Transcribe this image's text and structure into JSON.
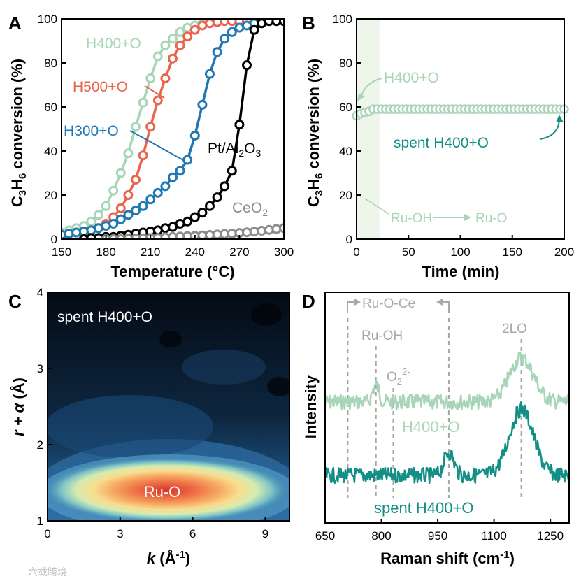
{
  "colors": {
    "h400": "#a8d5b8",
    "h500": "#e9654d",
    "h300": "#1f77b4",
    "pt": "#000000",
    "ceo2": "#8c8c8c",
    "spent": "#138f86",
    "dash": "#a8a8a8"
  },
  "chart_data": [
    {
      "panel": "A",
      "type": "line",
      "xlabel": "Temperature (°C)",
      "ylabel_parts": [
        "C",
        "3",
        "H",
        "6",
        " conversion (%)"
      ],
      "xlim": [
        150,
        300
      ],
      "ylim": [
        0,
        100
      ],
      "xticks": [
        150,
        180,
        210,
        240,
        270,
        300
      ],
      "yticks": [
        0,
        20,
        40,
        60,
        80,
        100
      ],
      "series": [
        {
          "name": "H400+O",
          "color_key": "h400",
          "x": [
            150,
            155,
            160,
            165,
            170,
            175,
            180,
            185,
            190,
            195,
            200,
            205,
            210,
            215,
            220,
            225,
            230,
            235,
            240,
            245,
            250,
            255,
            260,
            265,
            270,
            275,
            280,
            285,
            290,
            295,
            300
          ],
          "y": [
            3,
            4,
            5,
            6,
            8,
            11,
            15,
            22,
            30,
            39,
            51,
            62,
            73,
            83,
            88,
            91,
            94,
            96,
            97,
            98,
            98.5,
            99,
            99,
            99,
            99,
            99,
            99,
            99,
            99,
            99,
            99
          ]
        },
        {
          "name": "H500+O",
          "color_key": "h500",
          "x": [
            150,
            155,
            160,
            165,
            170,
            175,
            180,
            185,
            190,
            195,
            200,
            205,
            210,
            215,
            220,
            225,
            230,
            235,
            240,
            245,
            250,
            255,
            260,
            265,
            270,
            275,
            280,
            285,
            290,
            295,
            300
          ],
          "y": [
            2,
            2.5,
            3,
            3.5,
            4,
            5,
            7,
            10,
            14,
            20,
            27,
            38,
            51,
            63,
            73,
            82,
            88,
            92,
            95,
            97,
            98,
            98.5,
            99,
            99,
            99,
            99,
            99,
            99,
            99,
            99,
            99
          ]
        },
        {
          "name": "H300+O",
          "color_key": "h300",
          "x": [
            150,
            155,
            160,
            165,
            170,
            175,
            180,
            185,
            190,
            195,
            200,
            205,
            210,
            215,
            220,
            225,
            230,
            235,
            240,
            245,
            250,
            255,
            260,
            265,
            270,
            275,
            280,
            285,
            290,
            295,
            300
          ],
          "y": [
            2,
            2.5,
            3,
            3.5,
            4,
            5,
            6,
            7,
            9,
            11,
            13,
            15,
            18,
            21,
            24,
            28,
            31,
            36,
            47,
            61,
            75,
            85,
            91,
            94,
            96,
            97,
            98,
            98.5,
            99,
            99,
            99
          ]
        },
        {
          "name": "Pt/Al2O3",
          "color_key": "pt",
          "x": [
            165,
            170,
            175,
            180,
            185,
            190,
            195,
            200,
            205,
            210,
            215,
            220,
            225,
            230,
            235,
            240,
            245,
            250,
            255,
            260,
            265,
            270,
            275,
            280,
            285,
            290,
            295,
            300
          ],
          "y": [
            0,
            0.5,
            0.5,
            1,
            1,
            1.5,
            2,
            2.5,
            3,
            3.5,
            4,
            5,
            5.5,
            7,
            8,
            10,
            12,
            15,
            19,
            24,
            31,
            52,
            79,
            95,
            98,
            99,
            99,
            99
          ]
        },
        {
          "name": "CeO2",
          "color_key": "ceo2",
          "x": [
            180,
            185,
            190,
            195,
            200,
            205,
            210,
            215,
            220,
            225,
            230,
            235,
            240,
            245,
            250,
            255,
            260,
            265,
            270,
            275,
            280,
            285,
            290,
            295,
            300
          ],
          "y": [
            0,
            0,
            0,
            0.2,
            0.3,
            0.4,
            0.5,
            0.6,
            0.8,
            1,
            1.2,
            1.4,
            1.5,
            1.7,
            1.9,
            2.1,
            2.3,
            2.5,
            2.8,
            3.1,
            3.4,
            3.8,
            4.2,
            4.6,
            5
          ]
        }
      ],
      "labels": {
        "panel": "A",
        "h400": "H400+O",
        "h500": "H500+O",
        "h300": "H300+O",
        "pt_main": "Pt/Al",
        "pt_sub1": "2",
        "pt_mid": "O",
        "pt_sub2": "3",
        "ceo2_main": "CeO",
        "ceo2_sub": "2"
      }
    },
    {
      "panel": "B",
      "type": "scatter",
      "xlabel": "Time (min)",
      "ylabel_parts": [
        "C",
        "3",
        "H",
        "6",
        " conversion (%)"
      ],
      "xlim": [
        0,
        200
      ],
      "ylim": [
        0,
        100
      ],
      "xticks": [
        0,
        50,
        100,
        150,
        200
      ],
      "yticks": [
        0,
        20,
        40,
        60,
        80,
        100
      ],
      "shaded_region_x": [
        0,
        22
      ],
      "series": [
        {
          "name": "H400+O",
          "color_key": "h400",
          "x_start": 0,
          "x_step": 4,
          "n": 51,
          "y_first": [
            56,
            57,
            57.5,
            58
          ],
          "y_plateau": 59
        }
      ],
      "labels": {
        "panel": "B",
        "h400": "H400+O",
        "spent": "spent H400+O",
        "ruoh": "Ru-OH",
        "ruo": "Ru-O"
      }
    },
    {
      "panel": "C",
      "type": "heatmap",
      "xlabel_main": "k",
      "xlabel_rest": " (Å",
      "xlabel_sup": "-1",
      "xlabel_end": ")",
      "ylabel_main": "r + α",
      "ylabel_rest": " (Å)",
      "xlim": [
        0,
        10
      ],
      "ylim": [
        1,
        4
      ],
      "xticks": [
        0,
        3,
        6,
        9
      ],
      "yticks": [
        1,
        2,
        3,
        4
      ],
      "peak": {
        "k": 5.3,
        "r": 1.42
      },
      "labels": {
        "panel": "C",
        "title": "spent H400+O",
        "peak": "Ru-O"
      }
    },
    {
      "panel": "D",
      "type": "line",
      "xlabel_main": "Raman shift (cm",
      "xlabel_sup": "-1",
      "xlabel_end": ")",
      "ylabel": "Intensity",
      "xlim": [
        650,
        1300
      ],
      "xticks": [
        650,
        800,
        950,
        1100,
        1250
      ],
      "marker_lines_cm": [
        710,
        785,
        832,
        980,
        1173
      ],
      "series": [
        {
          "name": "H400+O",
          "color_key": "h400",
          "baseline": 0.0,
          "peaks": [
            {
              "x": 785,
              "h": 0.35,
              "w": 12
            },
            {
              "x": 1173,
              "h": 0.9,
              "w": 45
            }
          ]
        },
        {
          "name": "spent H400+O",
          "color_key": "spent",
          "baseline": 0.0,
          "peaks": [
            {
              "x": 980,
              "h": 0.35,
              "w": 18
            },
            {
              "x": 1173,
              "h": 1.0,
              "w": 45
            }
          ]
        }
      ],
      "labels": {
        "panel": "D",
        "ruoce": "Ru-O-Ce",
        "ruoh": "Ru-OH",
        "o2": "O",
        "o2_sub": "2",
        "o2_sup": "2-",
        "lo": "2LO",
        "h400": "H400+O",
        "spent": "spent H400+O"
      }
    }
  ],
  "watermark": "六载跨境"
}
